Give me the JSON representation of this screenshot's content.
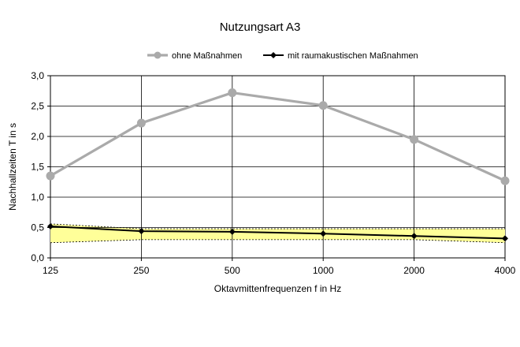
{
  "chart_data": {
    "type": "line",
    "title": "Nutzungsart A3",
    "xlabel": "Oktavmittenfrequenzen  f in Hz",
    "ylabel": "Nachhallzeiten  T in s",
    "categories": [
      "125",
      "250",
      "500",
      "1000",
      "2000",
      "4000"
    ],
    "ylim": [
      0,
      3
    ],
    "yticks": [
      "0,0",
      "0,5",
      "1,0",
      "1,5",
      "2,0",
      "2,5",
      "3,0"
    ],
    "grid": true,
    "legend_position": "top",
    "series": [
      {
        "name": "ohne Maßnahmen",
        "values": [
          1.35,
          2.22,
          2.72,
          2.51,
          1.95,
          1.27
        ],
        "color": "#aaaaaa",
        "marker": "circle"
      },
      {
        "name": "mit raumakustischen Maßnahmen",
        "values": [
          0.52,
          0.44,
          0.43,
          0.4,
          0.36,
          0.32
        ],
        "color": "#000000",
        "marker": "diamond"
      }
    ],
    "tolerance_band": {
      "upper": [
        0.56,
        0.48,
        0.48,
        0.48,
        0.48,
        0.48
      ],
      "lower": [
        0.25,
        0.3,
        0.3,
        0.3,
        0.3,
        0.25
      ],
      "fill_color": "#ffff99",
      "line_style": "dashed"
    }
  }
}
